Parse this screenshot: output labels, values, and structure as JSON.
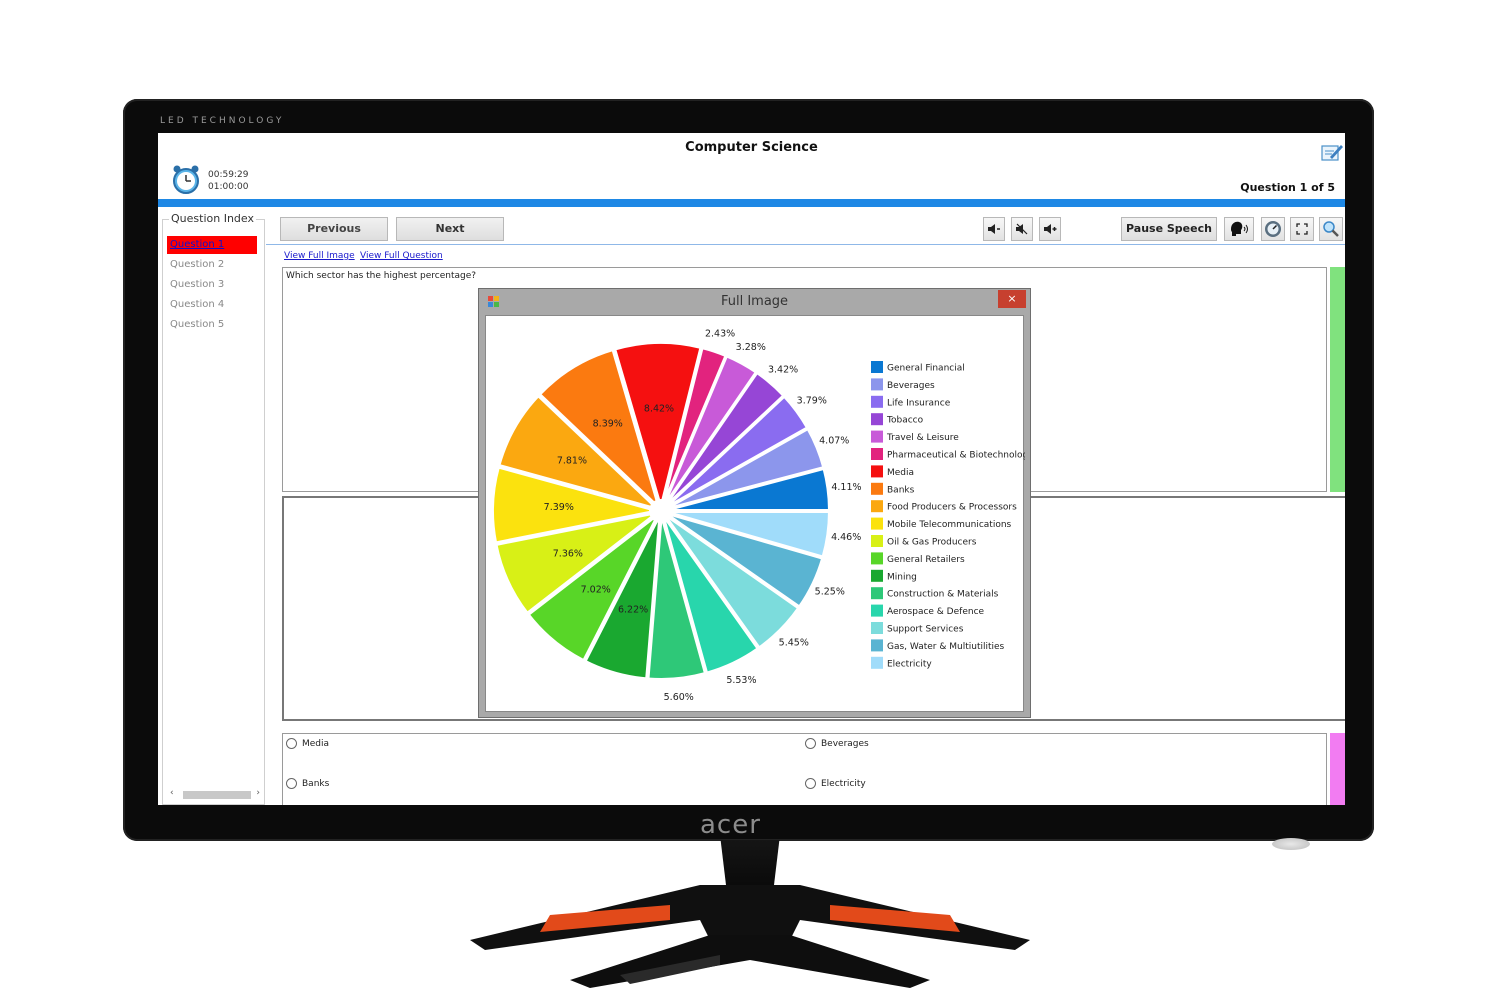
{
  "bezel": {
    "led_text": "LED TECHNOLOGY",
    "brand": "acer"
  },
  "app": {
    "title": "Computer Science",
    "timer_elapsed": "00:59:29",
    "timer_total": "01:00:00",
    "question_counter": "Question 1 of 5"
  },
  "question_index": {
    "title": "Question Index",
    "items": [
      "Question 1",
      "Question 2",
      "Question 3",
      "Question 4",
      "Question 5"
    ],
    "active": 0
  },
  "toolbar": {
    "previous_label": "Previous",
    "next_label": "Next",
    "pause_speech_label": "Pause Speech",
    "icons": [
      "volume-down-icon",
      "mute-icon",
      "volume-up-icon",
      "speaker-head-icon",
      "speed-dial-icon",
      "fullscreen-icon",
      "magnifier-icon"
    ]
  },
  "links": {
    "view_full_image": "View Full Image",
    "view_full_question": "View Full Question"
  },
  "question": {
    "text": "Which sector has the highest percentage?"
  },
  "options": [
    {
      "label": "Media"
    },
    {
      "label": "Beverages"
    },
    {
      "label": "Banks"
    },
    {
      "label": "Electricity"
    }
  ],
  "dialog": {
    "title": "Full Image",
    "close_label": "×"
  },
  "chart_data": {
    "type": "pie",
    "title": "",
    "legend_position": "right",
    "slices": [
      {
        "name": "General Financial",
        "value": 4.11,
        "color": "#0a78d2"
      },
      {
        "name": "Beverages",
        "value": 4.07,
        "color": "#8c96ec"
      },
      {
        "name": "Life Insurance",
        "value": 3.79,
        "color": "#8a6cf0"
      },
      {
        "name": "Tobacco",
        "value": 3.42,
        "color": "#9646d6"
      },
      {
        "name": "Travel & Leisure",
        "value": 3.28,
        "color": "#c85ad8"
      },
      {
        "name": "Pharmaceutical & Biotechnology",
        "value": 2.43,
        "color": "#e2237e"
      },
      {
        "name": "Media",
        "value": 8.42,
        "color": "#f51010"
      },
      {
        "name": "Banks",
        "value": 8.39,
        "color": "#fb7a10"
      },
      {
        "name": "Food Producers & Processors",
        "value": 7.81,
        "color": "#fba810"
      },
      {
        "name": "Mobile Telecommunications",
        "value": 7.39,
        "color": "#fbe20e"
      },
      {
        "name": "Oil & Gas Producers",
        "value": 7.36,
        "color": "#d8f016"
      },
      {
        "name": "General Retailers",
        "value": 7.02,
        "color": "#58d628"
      },
      {
        "name": "Mining",
        "value": 6.22,
        "color": "#1aa830"
      },
      {
        "name": "Construction & Materials",
        "value": 5.6,
        "color": "#2ec878"
      },
      {
        "name": "Aerospace & Defence",
        "value": 5.53,
        "color": "#28d6ac"
      },
      {
        "name": "Support Services",
        "value": 5.45,
        "color": "#7cdcdc"
      },
      {
        "name": "Gas, Water & Multiutilities",
        "value": 5.25,
        "color": "#5ab4d2"
      },
      {
        "name": "Electricity",
        "value": 4.46,
        "color": "#a0dcfa"
      }
    ],
    "labels": [
      "4.11%",
      "4.07%",
      "3.79%",
      "3.42%",
      "3.28%",
      "2.43%",
      "8.42%",
      "8.39%",
      "7.81%",
      "7.39%",
      "7.36%",
      "7.02%",
      "6.22%",
      "5.60%",
      "5.53%",
      "5.45%",
      "5.25%",
      "4.46%"
    ]
  }
}
